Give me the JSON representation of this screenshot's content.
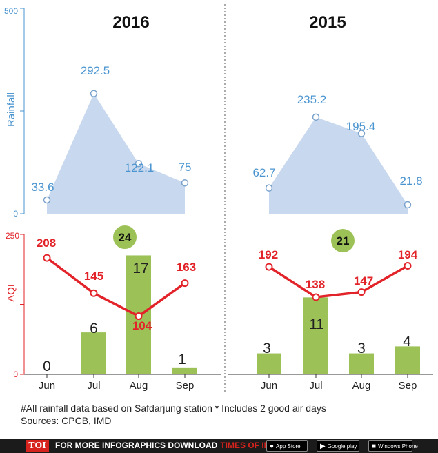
{
  "chart_data": {
    "type": "line",
    "panels": [
      {
        "title": "2016",
        "rainfall": {
          "categories": [
            "Jun",
            "Jul",
            "Aug",
            "Sep"
          ],
          "values": [
            33.6,
            292.5,
            122.1,
            75
          ],
          "labels": [
            "33.6",
            "292.5",
            "122.1",
            "75"
          ]
        },
        "aqi": {
          "values": [
            208,
            145,
            104,
            163
          ],
          "labels": [
            "208",
            "145",
            "104",
            "163"
          ]
        },
        "bars": {
          "values": [
            0,
            6,
            17,
            1
          ],
          "labels": [
            "0",
            "6",
            "17",
            "1"
          ]
        },
        "badge": "24"
      },
      {
        "title": "2015",
        "rainfall": {
          "categories": [
            "Jun",
            "Jul",
            "Aug",
            "Sep"
          ],
          "values": [
            62.7,
            235.2,
            195.4,
            21.8
          ],
          "labels": [
            "62.7",
            "235.2",
            "195.4",
            "21.8"
          ]
        },
        "aqi": {
          "values": [
            192,
            138,
            147,
            194
          ],
          "labels": [
            "192",
            "138",
            "147",
            "194"
          ]
        },
        "bars": {
          "values": [
            3,
            11,
            3,
            4
          ],
          "labels": [
            "3",
            "11",
            "3",
            "4"
          ]
        },
        "badge": "21"
      }
    ],
    "categories": [
      "Jun",
      "Jul",
      "Aug",
      "Sep"
    ],
    "rain_axis": {
      "label": "Rainfall",
      "ticks": [
        "500",
        "0"
      ],
      "ylim": [
        0,
        500
      ]
    },
    "aqi_axis": {
      "label": "AQI",
      "ticks": [
        "250",
        "0"
      ],
      "ylim": [
        0,
        250
      ]
    },
    "bar_max": 20,
    "colors": {
      "rain_fill": "#c8d8ee",
      "rain_text": "#4a94cf",
      "aqi": "#e2242a",
      "bar": "#9cc257",
      "badge": "#9cc257"
    }
  },
  "notes": {
    "line1": "#All rainfall data based on Safdarjung station * Includes 2 good air days",
    "line2": "Sources: CPCB, IMD"
  },
  "footer": {
    "brand": "TOI",
    "promo_text": "FOR MORE  INFOGRAPHICS DOWNLOAD",
    "app_name": "TIMES OF INDIA APP",
    "stores": [
      "App Store",
      "Google play",
      "Windows Phone"
    ]
  }
}
